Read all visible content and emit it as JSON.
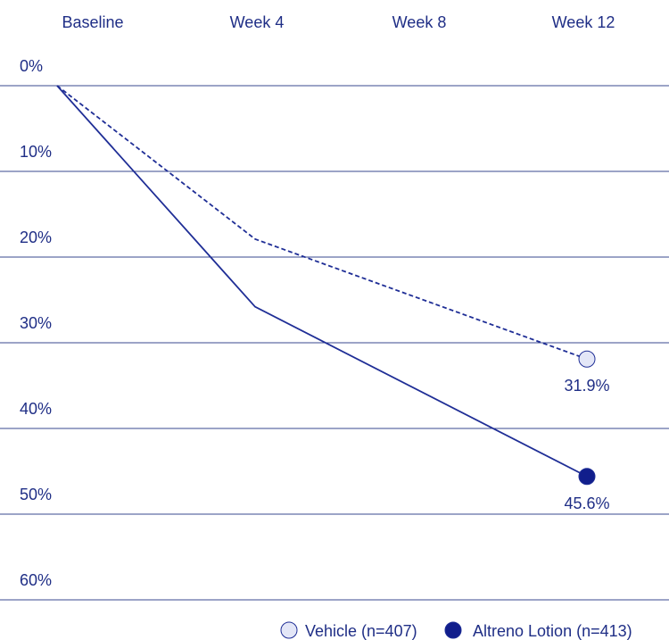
{
  "chart_data": {
    "type": "line",
    "categories": [
      "Baseline",
      "Week 4",
      "Week 8",
      "Week 12"
    ],
    "y_ticks": [
      "0%",
      "10%",
      "20%",
      "30%",
      "40%",
      "50%",
      "60%"
    ],
    "ylim": [
      0,
      60
    ],
    "y_reversed": true,
    "grid": true,
    "legend_position": "bottom-right",
    "series": [
      {
        "name": "Vehicle (n=407)",
        "x": [
          "Baseline",
          "Week 4",
          "Week 12"
        ],
        "values": [
          0,
          17.9,
          31.9
        ],
        "end_label": "31.9%",
        "line_style": "dashed",
        "marker_color": "#e3e6f7",
        "line_color": "#1f2e96"
      },
      {
        "name": "Altreno Lotion (n=413)",
        "x": [
          "Baseline",
          "Week 4",
          "Week 12"
        ],
        "values": [
          0,
          25.8,
          45.6
        ],
        "end_label": "45.6%",
        "line_style": "solid",
        "marker_color": "#111e8c",
        "line_color": "#1f2e96"
      }
    ]
  }
}
